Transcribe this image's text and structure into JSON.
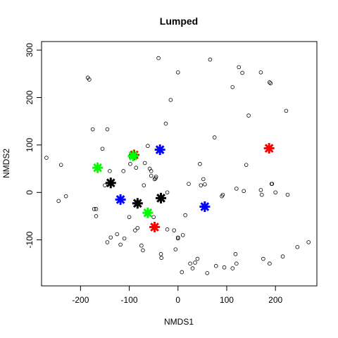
{
  "chart_data": {
    "type": "scatter",
    "title": "Lumped",
    "xlabel": "NMDS1",
    "ylabel": "NMDS2",
    "xlim": [
      -280,
      285
    ],
    "ylim": [
      -197,
      318
    ],
    "xticks": [
      -200,
      -100,
      0,
      100,
      200
    ],
    "yticks": [
      -100,
      0,
      100,
      200,
      300
    ],
    "grid": false,
    "legend": "none",
    "points": [
      [
        -270,
        73
      ],
      [
        -240,
        58
      ],
      [
        -245,
        -18
      ],
      [
        -230,
        -8
      ],
      [
        -185,
        242
      ],
      [
        -182,
        238
      ],
      [
        -175,
        133
      ],
      [
        -168,
        -35
      ],
      [
        -172,
        -35
      ],
      [
        -168,
        -50
      ],
      [
        -155,
        92
      ],
      [
        -145,
        133
      ],
      [
        -150,
        15
      ],
      [
        -140,
        45
      ],
      [
        -138,
        -95
      ],
      [
        -145,
        -105
      ],
      [
        -125,
        -88
      ],
      [
        -118,
        -110
      ],
      [
        -112,
        45
      ],
      [
        -110,
        -97
      ],
      [
        -100,
        -52
      ],
      [
        -98,
        60
      ],
      [
        -97,
        75
      ],
      [
        -88,
        -80
      ],
      [
        -86,
        52
      ],
      [
        -83,
        -75
      ],
      [
        -75,
        -112
      ],
      [
        -72,
        -122
      ],
      [
        -70,
        15
      ],
      [
        -68,
        62
      ],
      [
        -62,
        98
      ],
      [
        -58,
        50
      ],
      [
        -55,
        45
      ],
      [
        -55,
        35
      ],
      [
        -50,
        -52
      ],
      [
        -48,
        28
      ],
      [
        -46,
        30
      ],
      [
        -45,
        33
      ],
      [
        -40,
        283
      ],
      [
        -35,
        -130
      ],
      [
        -34,
        -138
      ],
      [
        -25,
        145
      ],
      [
        -22,
        0
      ],
      [
        -22,
        -78
      ],
      [
        -15,
        195
      ],
      [
        -8,
        -80
      ],
      [
        -5,
        -120
      ],
      [
        0,
        253
      ],
      [
        0,
        -97
      ],
      [
        0,
        -95
      ],
      [
        10,
        -90
      ],
      [
        8,
        -168
      ],
      [
        15,
        -48
      ],
      [
        22,
        18
      ],
      [
        25,
        -150
      ],
      [
        30,
        -160
      ],
      [
        35,
        -148
      ],
      [
        40,
        -140
      ],
      [
        45,
        60
      ],
      [
        47,
        15
      ],
      [
        52,
        28
      ],
      [
        55,
        17
      ],
      [
        60,
        -170
      ],
      [
        66,
        280
      ],
      [
        75,
        116
      ],
      [
        78,
        -155
      ],
      [
        90,
        -8
      ],
      [
        92,
        -5
      ],
      [
        95,
        -158
      ],
      [
        112,
        -160
      ],
      [
        112,
        222
      ],
      [
        118,
        -130
      ],
      [
        120,
        -150
      ],
      [
        120,
        8
      ],
      [
        125,
        264
      ],
      [
        132,
        252
      ],
      [
        135,
        3
      ],
      [
        140,
        58
      ],
      [
        145,
        162
      ],
      [
        170,
        253
      ],
      [
        170,
        5
      ],
      [
        172,
        -5
      ],
      [
        175,
        -140
      ],
      [
        188,
        232
      ],
      [
        190,
        230
      ],
      [
        188,
        -150
      ],
      [
        192,
        18
      ],
      [
        193,
        18
      ],
      [
        200,
        0
      ],
      [
        215,
        -135
      ],
      [
        222,
        172
      ],
      [
        225,
        -5
      ],
      [
        245,
        -115
      ],
      [
        268,
        -105
      ]
    ],
    "series": [
      {
        "color": "#000000",
        "points": [
          [
            -138,
            20
          ],
          [
            -83,
            -23
          ],
          [
            -35,
            -12
          ]
        ]
      },
      {
        "color": "#ff0000",
        "points": [
          [
            -90,
            79
          ],
          [
            187,
            93
          ],
          [
            -48,
            -73
          ]
        ]
      },
      {
        "color": "#00ff00",
        "points": [
          [
            -165,
            52
          ],
          [
            -92,
            77
          ],
          [
            -62,
            -43
          ]
        ]
      },
      {
        "color": "#0000ff",
        "points": [
          [
            -37,
            90
          ],
          [
            -118,
            -15
          ],
          [
            55,
            -30
          ]
        ]
      }
    ]
  }
}
